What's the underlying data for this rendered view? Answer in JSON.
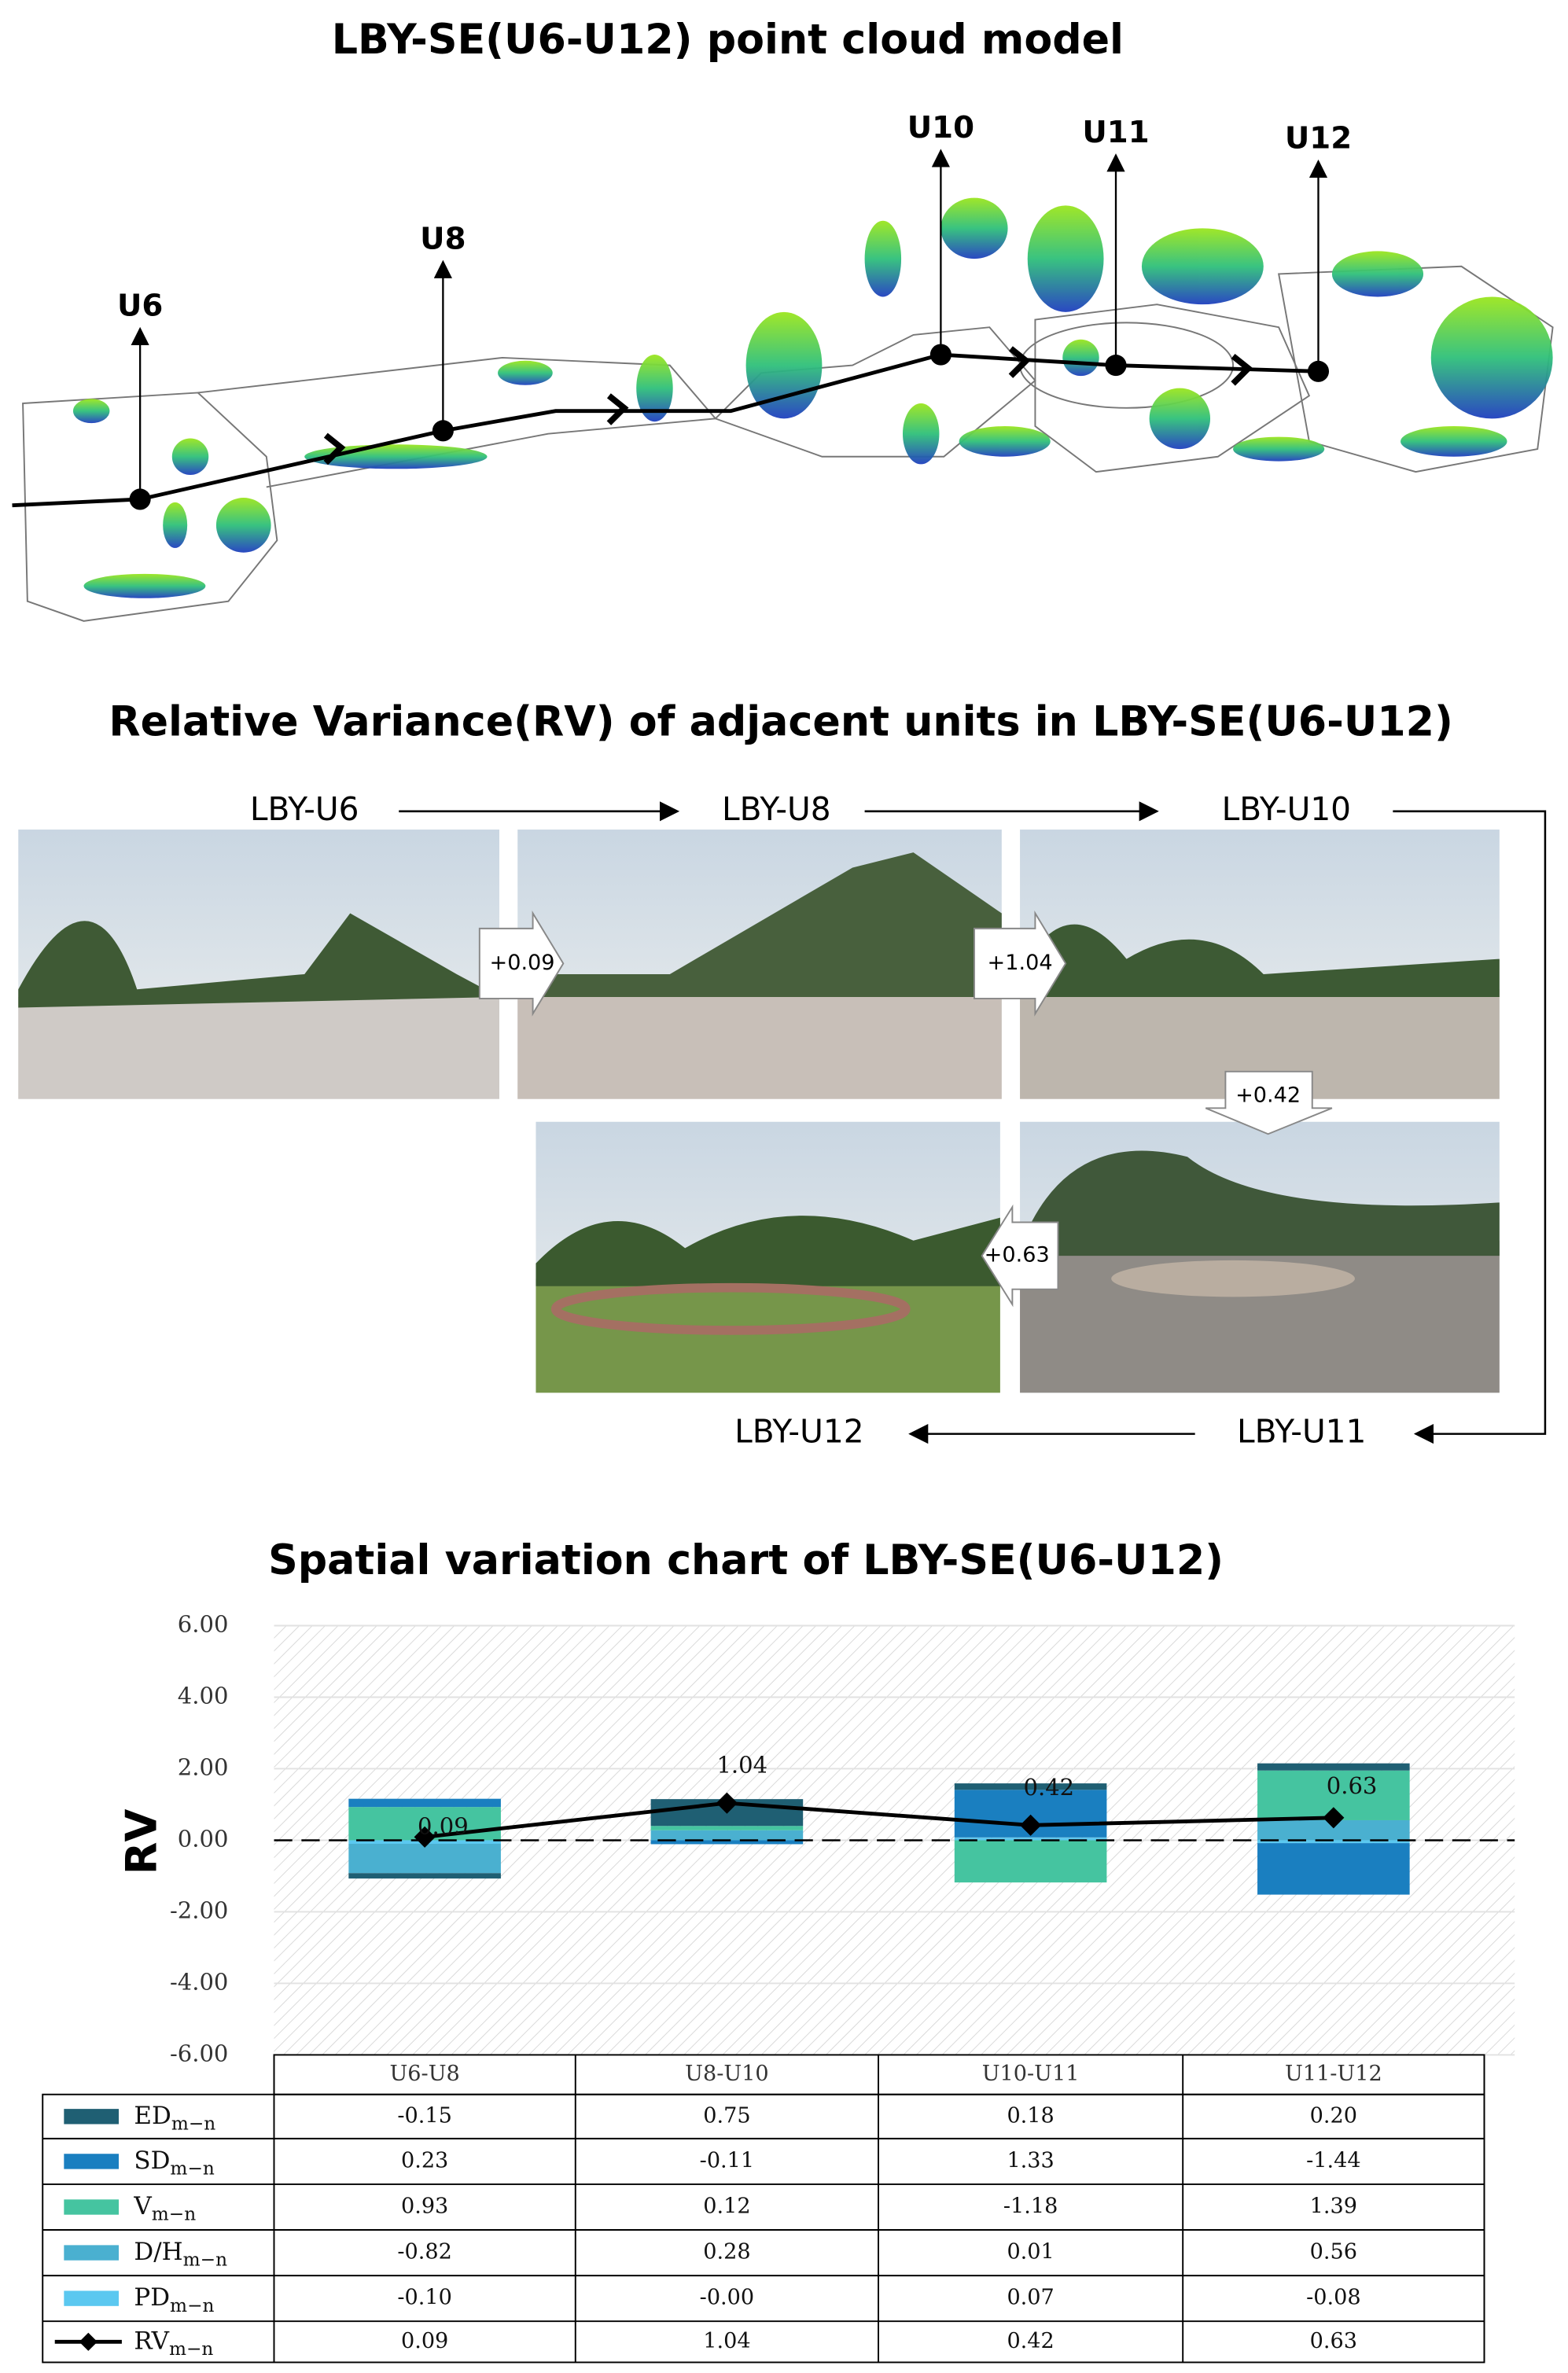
{
  "point_cloud": {
    "title": "LBY-SE(U6-U12) point cloud model",
    "units": [
      "U6",
      "U8",
      "U10",
      "U11",
      "U12"
    ]
  },
  "photo_panel": {
    "title": "Relative Variance(RV) of adjacent units in LBY-SE(U6-U12)",
    "units": [
      "LBY-U6",
      "LBY-U8",
      "LBY-U10",
      "LBY-U11",
      "LBY-U12"
    ],
    "changes": [
      "+0.09",
      "+1.04",
      "+0.42",
      "+0.63"
    ]
  },
  "chart_data": {
    "type": "bar",
    "stacked": true,
    "title": "Spatial variation chart of LBY-SE(U6-U12)",
    "y_label": "RV",
    "categories": [
      "U6-U8",
      "U8-U10",
      "U10-U11",
      "U11-U12"
    ],
    "ylim": [
      -6,
      6
    ],
    "yticks": [
      {
        "value": 6,
        "label": "6.00"
      },
      {
        "value": 4,
        "label": "4.00"
      },
      {
        "value": 2,
        "label": "2.00"
      },
      {
        "value": 0,
        "label": "0.00"
      },
      {
        "value": -2,
        "label": "-2.00"
      },
      {
        "value": -4,
        "label": "-4.00"
      },
      {
        "value": -6,
        "label": "-6.00"
      }
    ],
    "grid": true,
    "series": [
      {
        "name": "ED",
        "subscript": "m−n",
        "color": "#1f5f73",
        "values": [
          -0.15,
          0.75,
          0.18,
          0.2
        ],
        "value_labels": [
          "-0.15",
          "0.75",
          "0.18",
          "0.20"
        ]
      },
      {
        "name": "SD",
        "subscript": "m−n",
        "color": "#1a7fc0",
        "values": [
          0.23,
          -0.11,
          1.33,
          -1.44
        ],
        "value_labels": [
          "0.23",
          "-0.11",
          "1.33",
          "-1.44"
        ]
      },
      {
        "name": "V",
        "subscript": "m−n",
        "color": "#45c4a0",
        "values": [
          0.93,
          0.12,
          -1.18,
          1.39
        ],
        "value_labels": [
          "0.93",
          "0.12",
          "-1.18",
          "1.39"
        ]
      },
      {
        "name": "D/H",
        "subscript": "m−n",
        "color": "#4ab0d0",
        "values": [
          -0.82,
          0.28,
          0.01,
          0.56
        ],
        "value_labels": [
          "-0.82",
          "0.28",
          "0.01",
          "0.56"
        ]
      },
      {
        "name": "PD",
        "subscript": "m−n",
        "color": "#5bc8f0",
        "values": [
          -0.1,
          -0.0,
          0.07,
          -0.08
        ],
        "value_labels": [
          "-0.10",
          "-0.00",
          "0.07",
          "-0.08"
        ]
      },
      {
        "name": "RV",
        "subscript": "m−n",
        "type": "line",
        "color": "#000000",
        "values": [
          0.09,
          1.04,
          0.42,
          0.63
        ],
        "value_labels": [
          "0.09",
          "1.04",
          "0.42",
          "0.63"
        ]
      }
    ]
  }
}
